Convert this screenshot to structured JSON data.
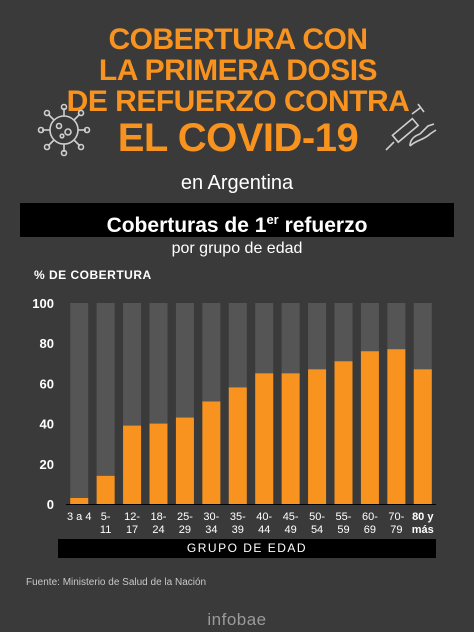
{
  "header": {
    "title_line1": "COBERTURA CON",
    "title_line2": "LA PRIMERA DOSIS",
    "title_line3": "DE REFUERZO CONTRA",
    "title_line4": "EL COVID-19",
    "subtitle": "en Argentina",
    "banner_main": "Coberturas de 1",
    "banner_sup": "er",
    "banner_end": " refuerzo",
    "byage": "por grupo de edad"
  },
  "colors": {
    "bar": "#f7931e",
    "track": "#555555",
    "accent": "#f7931e"
  },
  "icons": {
    "left": "virus-icon",
    "right": "syringe-icon"
  },
  "chart_data": {
    "type": "bar",
    "title": "Coberturas de 1er refuerzo",
    "ylabel": "% DE COBERTURA",
    "xlabel": "GRUPO DE EDAD",
    "ylim": [
      0,
      100
    ],
    "yticks": [
      "0",
      "20",
      "40",
      "60",
      "80",
      "100"
    ],
    "categories": [
      [
        "3 a 4",
        ""
      ],
      [
        "5-",
        "11"
      ],
      [
        "12-",
        "17"
      ],
      [
        "18-",
        "24"
      ],
      [
        "25-",
        "29"
      ],
      [
        "30-",
        "34"
      ],
      [
        "35-",
        "39"
      ],
      [
        "40-",
        "44"
      ],
      [
        "45-",
        "49"
      ],
      [
        "50-",
        "54"
      ],
      [
        "55-",
        "59"
      ],
      [
        "60-",
        "69"
      ],
      [
        "70-",
        "79"
      ],
      [
        "80 y",
        "más"
      ]
    ],
    "values": [
      3,
      14,
      39,
      40,
      43,
      51,
      58,
      65,
      65,
      67,
      71,
      76,
      77,
      67
    ]
  },
  "footer": {
    "source": "Fuente: Ministerio de Salud de la Nación",
    "brand": "infobae"
  }
}
